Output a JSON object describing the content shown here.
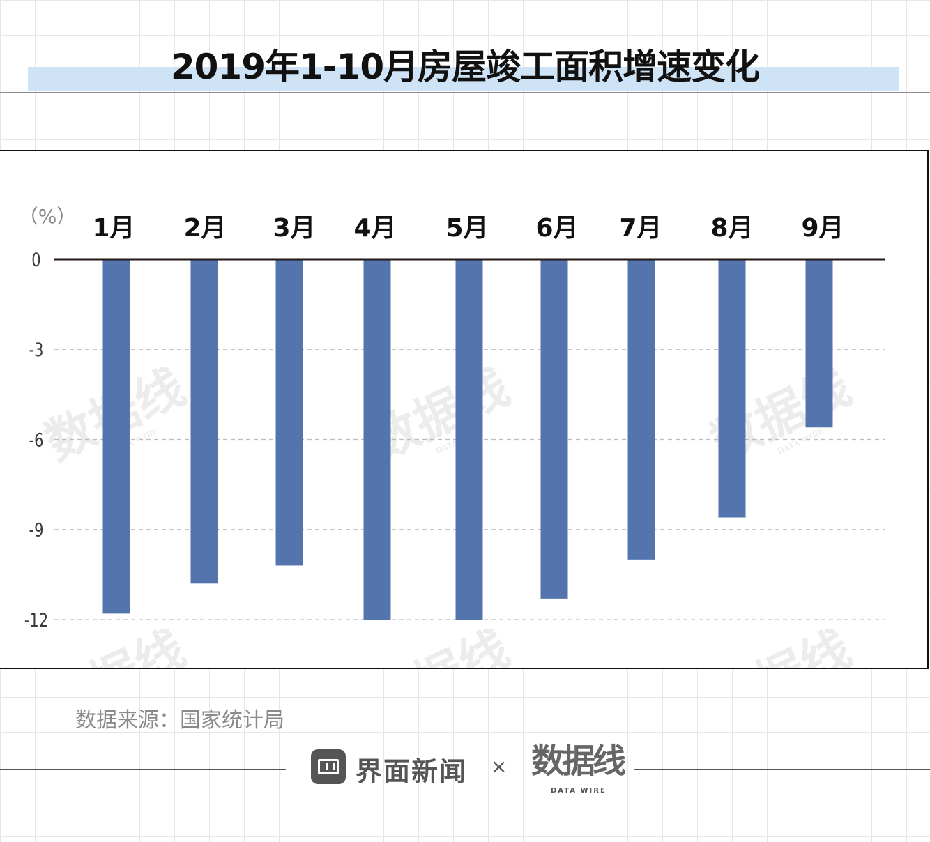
{
  "title": "2019年1-10月房屋竣工面积增速变化",
  "source_text": "数据来源：国家统计局",
  "footer": {
    "brand_name": "界面新闻",
    "times": "×",
    "logo_text": "数据线",
    "logo_sub": "DATA WIRE"
  },
  "watermark": {
    "text": "数据线",
    "sub": "DATA WIRE"
  },
  "colors": {
    "bar": "#5474ae",
    "title_band": "#cfe3f7",
    "zero_line": "#231815"
  },
  "chart_data": {
    "type": "bar",
    "unit_label": "（%）",
    "categories": [
      "1月",
      "2月",
      "3月",
      "4月",
      "5月",
      "6月",
      "7月",
      "8月",
      "9月"
    ],
    "values": [
      -11.8,
      -10.8,
      -10.2,
      -12.0,
      -12.0,
      -11.3,
      -10.0,
      -8.6,
      -5.6
    ],
    "ylim": [
      -12,
      0
    ],
    "yticks": [
      0,
      -3,
      -6,
      -9,
      -12
    ],
    "ytick_labels": [
      "0",
      "-3",
      "-6",
      "-9",
      "-12"
    ],
    "grid": "dashed horizontal",
    "title": "2019年1-10月房屋竣工面积增速变化",
    "xlabel": "",
    "ylabel": ""
  }
}
